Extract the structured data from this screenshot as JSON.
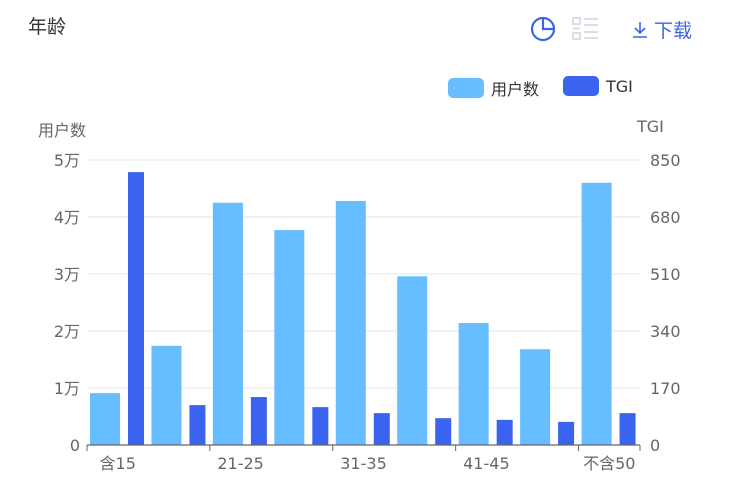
{
  "header": {
    "title": "年龄",
    "download_label": "下载",
    "icons": [
      "pie-chart-icon",
      "list-icon",
      "download-icon"
    ]
  },
  "chart_data": {
    "type": "bar",
    "categories": [
      "含15",
      "",
      "21-25",
      "",
      "31-35",
      "",
      "41-45",
      "",
      "不含50"
    ],
    "series": [
      {
        "name": "用户数",
        "axis": "left",
        "color": "#66bdff",
        "values": [
          9100,
          17400,
          42500,
          37700,
          42800,
          29600,
          21400,
          16800,
          46000
        ]
      },
      {
        "name": "TGI",
        "axis": "right",
        "color": "#3a63f0",
        "values": [
          814,
          119,
          143,
          113,
          95,
          80,
          75,
          69,
          95
        ]
      }
    ],
    "y_left": {
      "name": "用户数",
      "ylim": [
        0,
        50000
      ],
      "ticks": [
        "0",
        "1万",
        "2万",
        "3万",
        "4万",
        "5万"
      ]
    },
    "y_right": {
      "name": "TGI",
      "ylim": [
        0,
        850
      ],
      "ticks": [
        "0",
        "170",
        "340",
        "510",
        "680",
        "850"
      ]
    },
    "grid": true,
    "legend": "top-right"
  }
}
